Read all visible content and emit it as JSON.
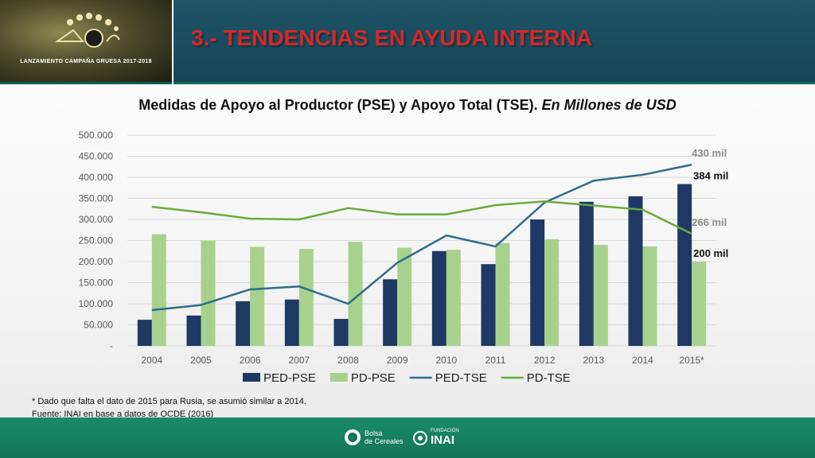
{
  "header": {
    "title": "3.- TENDENCIAS EN AYUDA INTERNA",
    "logo_caption": "LANZAMIENTO CAMPAÑA GRUESA 2017-2018"
  },
  "colors": {
    "ped_pse": "#1f3864",
    "pd_pse": "#a9d18e",
    "ped_tse": "#2e6e8a",
    "pd_tse": "#6aaa3d",
    "title_red": "#d42828"
  },
  "chart_data": {
    "type": "bar",
    "title": "Medidas de Apoyo al Productor (PSE) y Apoyo Total (TSE).",
    "title_italic": "En Millones de USD",
    "categories": [
      "2004",
      "2005",
      "2006",
      "2007",
      "2008",
      "2009",
      "2010",
      "2011",
      "2012",
      "2013",
      "2014",
      "2015*"
    ],
    "y_ticks": [
      "-",
      "50.000",
      "100.000",
      "150.000",
      "200.000",
      "250.000",
      "300.000",
      "350.000",
      "400.000",
      "450.000",
      "500.000"
    ],
    "ylim": [
      0,
      500000
    ],
    "grid": true,
    "legend_position": "bottom",
    "series": [
      {
        "name": "PED-PSE",
        "kind": "bar",
        "color": "#1f3864",
        "values": [
          62000,
          72000,
          106000,
          110000,
          64000,
          158000,
          225000,
          194000,
          300000,
          342000,
          355000,
          384000
        ]
      },
      {
        "name": "PD-PSE",
        "kind": "bar",
        "color": "#a9d18e",
        "values": [
          265000,
          250000,
          235000,
          230000,
          247000,
          233000,
          228000,
          244000,
          253000,
          240000,
          236000,
          200000
        ]
      },
      {
        "name": "PED-TSE",
        "kind": "line",
        "color": "#2e6e8a",
        "values": [
          85000,
          97000,
          134000,
          141000,
          100000,
          197000,
          262000,
          236000,
          340000,
          392000,
          406000,
          430000
        ]
      },
      {
        "name": "PD-TSE",
        "kind": "line",
        "color": "#6aaa3d",
        "values": [
          330000,
          317000,
          302000,
          300000,
          327000,
          312000,
          312000,
          334000,
          343000,
          333000,
          323000,
          266000
        ]
      }
    ],
    "annotations": [
      {
        "text": "430 mil",
        "series": "PED-TSE",
        "category": "2015*",
        "value": 430000,
        "style": "grey"
      },
      {
        "text": "384 mil",
        "series": "PED-PSE",
        "category": "2015*",
        "value": 384000,
        "style": "black"
      },
      {
        "text": "266 mil",
        "series": "PD-TSE",
        "category": "2015*",
        "value": 266000,
        "style": "grey"
      },
      {
        "text": "200 mil",
        "series": "PD-PSE",
        "category": "2015*",
        "value": 200000,
        "style": "black"
      }
    ]
  },
  "footnotes": [
    "* Dado que falta el dato de 2015 para Rusia, se asumió similar a 2014.",
    "Fuente: INAI en base a datos de OCDE (2016)"
  ],
  "footer": {
    "logo1_line1": "Bolsa",
    "logo1_line2": "de Cereales",
    "logo2_small": "FUNDACIÓN",
    "logo2_big": "INAI"
  }
}
